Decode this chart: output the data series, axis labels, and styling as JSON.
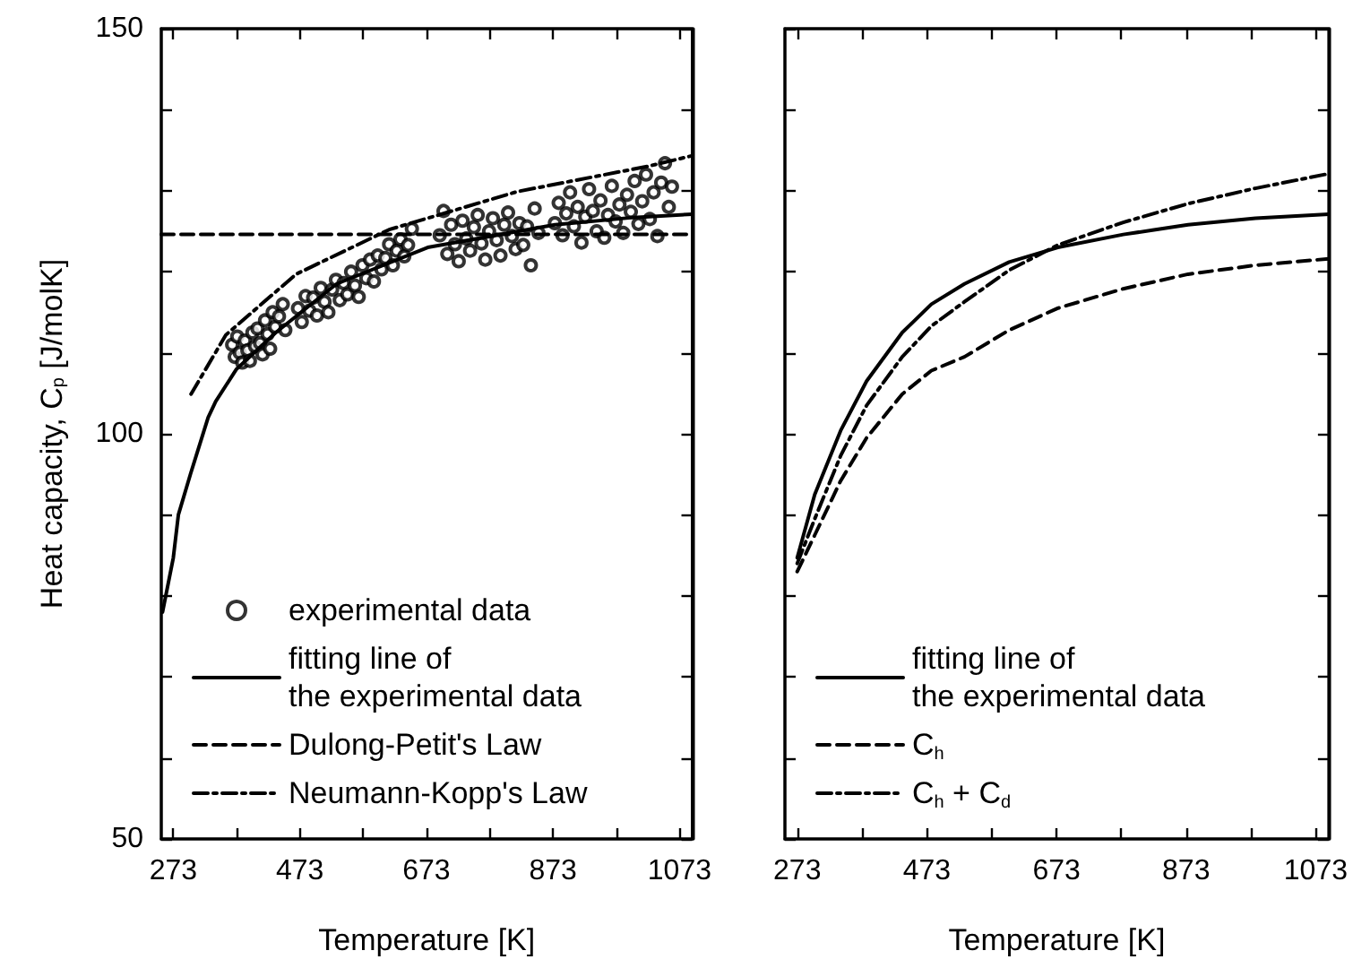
{
  "chart_data": [
    {
      "type": "line",
      "xlabel": "Temperature [K]",
      "ylabel": "Heat capacity, C$_{p}$ [J/molK]",
      "xlim": [
        254,
        1093
      ],
      "ylim": [
        50,
        150
      ],
      "xticks": [
        273,
        {
          "value": 373,
          "label": null
        },
        473,
        {
          "value": 573,
          "label": null
        },
        673,
        {
          "value": 773,
          "label": null
        },
        873,
        {
          "value": 973,
          "label": null
        },
        1073
      ],
      "yticks": [
        50,
        {
          "value": 60,
          "label": null
        },
        {
          "value": 70,
          "label": null
        },
        {
          "value": 80,
          "label": null
        },
        {
          "value": 90,
          "label": null
        },
        100,
        {
          "value": 110,
          "label": null
        },
        {
          "value": 120,
          "label": null
        },
        {
          "value": 130,
          "label": null
        },
        {
          "value": 140,
          "label": null
        },
        150
      ],
      "grid": false,
      "legend": "bottom left",
      "series": [
        {
          "name": "experimental data",
          "type": "scatter",
          "marker": "circle",
          "color": "#000000",
          "x": [
            366,
            370,
            374,
            378,
            382,
            386,
            390,
            394,
            398,
            402,
            406,
            410,
            414,
            418,
            422,
            426,
            430,
            434,
            440,
            446,
            450,
            470,
            476,
            482,
            488,
            494,
            500,
            506,
            512,
            518,
            524,
            530,
            536,
            542,
            548,
            554,
            560,
            566,
            572,
            578,
            584,
            590,
            596,
            602,
            608,
            614,
            620,
            626,
            632,
            638,
            644,
            650,
            694,
            700,
            706,
            712,
            718,
            724,
            730,
            736,
            742,
            748,
            754,
            760,
            766,
            772,
            778,
            784,
            790,
            796,
            802,
            808,
            814,
            820,
            826,
            832,
            838,
            844,
            850,
            876,
            882,
            888,
            894,
            900,
            906,
            912,
            918,
            924,
            930,
            936,
            942,
            948,
            954,
            960,
            966,
            972,
            978,
            984,
            990,
            996,
            1002,
            1008,
            1014,
            1020,
            1026,
            1032,
            1038,
            1044,
            1050,
            1056,
            1061
          ],
          "values": [
            111,
            109.5,
            112,
            110,
            108.8,
            111.5,
            110.3,
            109,
            112.5,
            110.8,
            113,
            111.2,
            109.8,
            114,
            112.3,
            110.5,
            115,
            113.2,
            114.5,
            116,
            112.8,
            115.5,
            113.8,
            117,
            115.2,
            116.8,
            114.6,
            118,
            116.3,
            115,
            117.8,
            119,
            116.5,
            118.6,
            117.2,
            120,
            118.3,
            116.9,
            120.8,
            119.2,
            121.5,
            118.8,
            122,
            120.3,
            121.7,
            123.4,
            120.8,
            122.6,
            124,
            121.9,
            123.3,
            125.3,
            124.5,
            127.5,
            122.2,
            125.8,
            123.4,
            121.3,
            126.3,
            124.1,
            122.6,
            125.5,
            127,
            123.5,
            121.5,
            125,
            126.6,
            123.9,
            122,
            125.8,
            127.3,
            124.4,
            122.8,
            126,
            123.3,
            125.6,
            120.8,
            127.8,
            124.8,
            126,
            128.5,
            124.5,
            127.2,
            129.8,
            125.6,
            128,
            123.6,
            126.8,
            130.2,
            127.5,
            125,
            128.8,
            124.2,
            127,
            130.6,
            126.2,
            128.3,
            124.8,
            129.5,
            127.4,
            131.2,
            125.9,
            128.7,
            132,
            126.5,
            129.8,
            124.4,
            131,
            133.4,
            128,
            130.5
          ]
        },
        {
          "name": "fitting line of\nthe experimental data",
          "type": "line",
          "line_style": "solid",
          "marker": "none",
          "color": "#000000",
          "x": [
            256,
            273,
            281,
            300,
            328,
            340,
            373,
            435,
            531,
            675,
            876,
            1000,
            1093
          ],
          "values": [
            78,
            84.7,
            90,
            95,
            102,
            104,
            108,
            112.5,
            118.5,
            123,
            125.8,
            126.7,
            127.1
          ]
        },
        {
          "name": "Dulong-Petit's Law",
          "type": "line",
          "line_style": "dashed",
          "marker": "none",
          "color": "#000000",
          "x": [
            254,
            1093
          ],
          "values": [
            124.6,
            124.6
          ]
        },
        {
          "name": "Neumann-Kopp's Law",
          "type": "line",
          "line_style": "dashdot",
          "marker": "none",
          "color": "#000000",
          "x": [
            301,
            356,
            467,
            614,
            817,
            1022,
            1092
          ],
          "values": [
            104.9,
            112.2,
            119.7,
            125.2,
            129.9,
            133,
            134.3
          ]
        }
      ]
    },
    {
      "type": "line",
      "xlabel": "Temperature [K]",
      "xlim": [
        254,
        1093
      ],
      "ylim": [
        50,
        150
      ],
      "tick_labels": "x",
      "xticks": [
        273,
        {
          "value": 373,
          "label": null
        },
        473,
        {
          "value": 573,
          "label": null
        },
        673,
        {
          "value": 773,
          "label": null
        },
        873,
        {
          "value": 973,
          "label": null
        },
        1073
      ],
      "yticks": [
        50,
        {
          "value": 60,
          "label": null
        },
        {
          "value": 70,
          "label": null
        },
        {
          "value": 80,
          "label": null
        },
        {
          "value": 90,
          "label": null
        },
        100,
        {
          "value": 110,
          "label": null
        },
        {
          "value": 120,
          "label": null
        },
        {
          "value": 130,
          "label": null
        },
        {
          "value": 140,
          "label": null
        },
        150
      ],
      "grid": false,
      "legend": "bottom",
      "series": [
        {
          "name": "fitting line of\nthe experimental data",
          "line_style": "solid",
          "marker": "none",
          "color": "#000000",
          "x": [
            273,
            300,
            340,
            380,
            435,
            480,
            531,
            600,
            675,
            776,
            876,
            980,
            1093
          ],
          "values": [
            84.7,
            92.5,
            100.4,
            106.5,
            112.5,
            116,
            118.5,
            121.2,
            123,
            124.6,
            125.8,
            126.6,
            127.1
          ]
        },
        {
          "name": "C$_{h}$",
          "line_style": "dashed",
          "marker": "none",
          "color": "#000000",
          "x": [
            273,
            300,
            340,
            380,
            435,
            480,
            531,
            600,
            675,
            776,
            876,
            980,
            1093
          ],
          "values": [
            83,
            87.5,
            94.2,
            99.5,
            104.9,
            107.8,
            109.5,
            112.8,
            115.5,
            117.9,
            119.7,
            120.8,
            121.6
          ]
        },
        {
          "name": "C$_{h}$ + C$_{d}$",
          "line_style": "dashdot",
          "marker": "none",
          "color": "#000000",
          "x": [
            273,
            300,
            340,
            380,
            435,
            480,
            531,
            600,
            675,
            776,
            876,
            980,
            1093
          ],
          "values": [
            84,
            89.5,
            97.3,
            103.5,
            109.5,
            113.3,
            116.3,
            120.2,
            123.3,
            126.1,
            128.4,
            130.3,
            132.1
          ]
        }
      ]
    }
  ]
}
